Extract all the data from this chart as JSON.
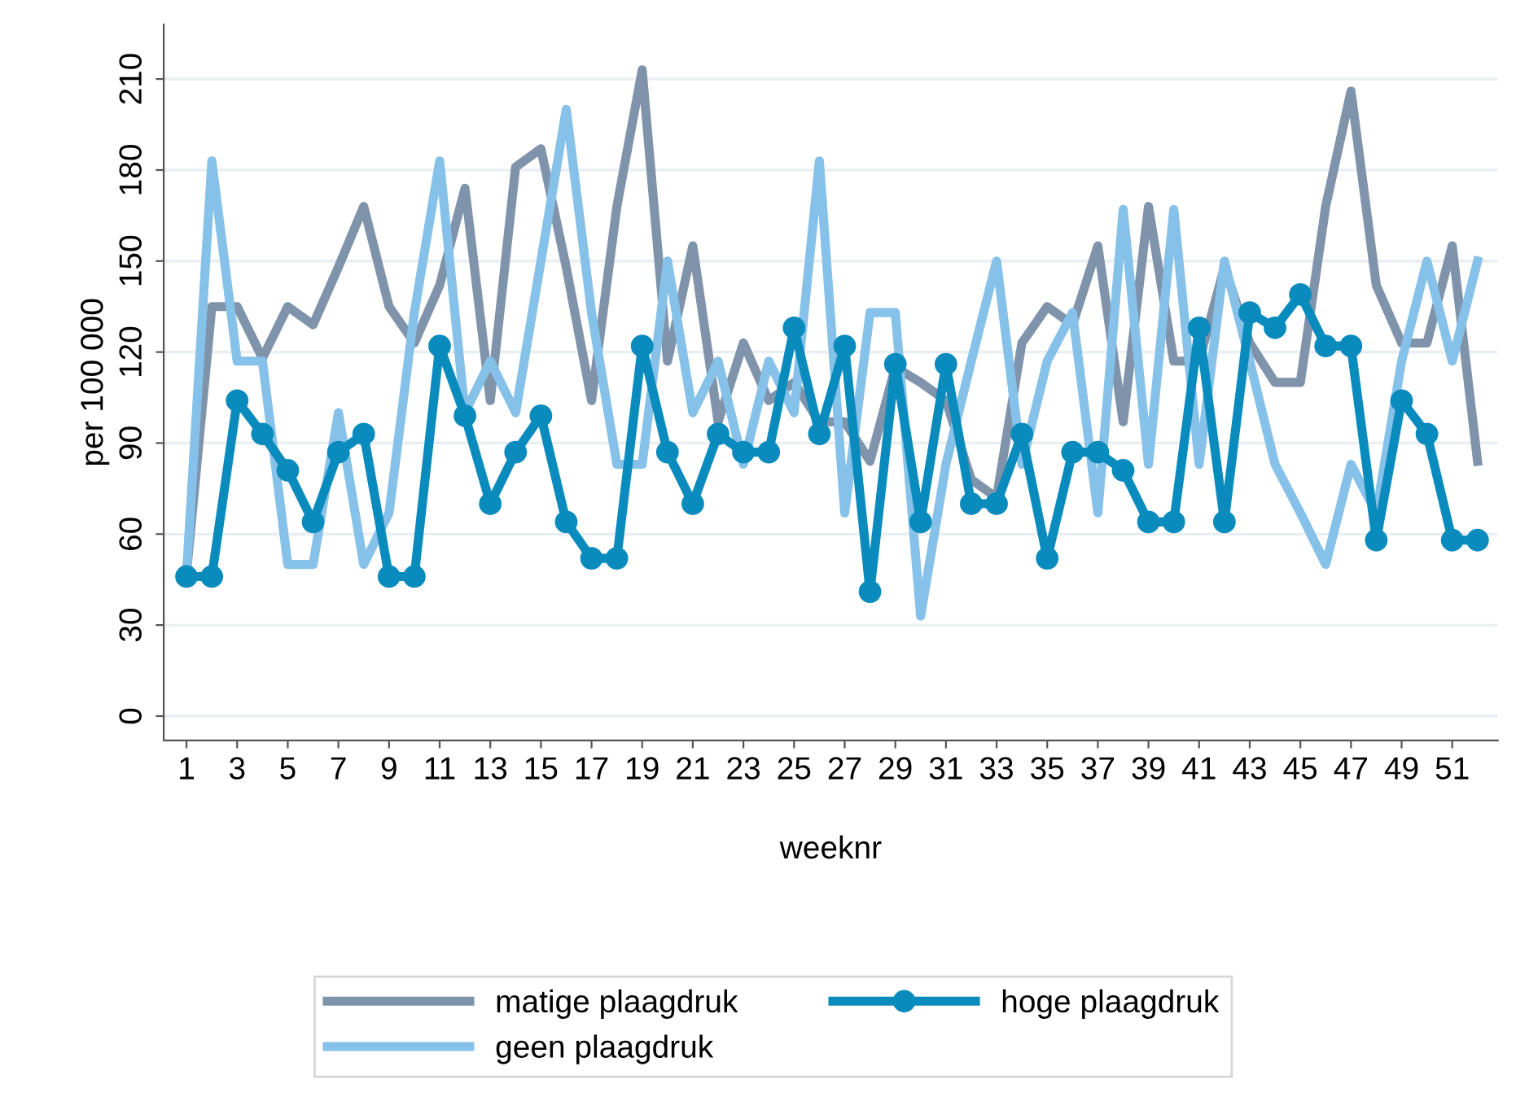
{
  "chart_data": {
    "type": "line",
    "xlabel": "weeknr",
    "ylabel": "per 100 000",
    "x": [
      1,
      2,
      3,
      4,
      5,
      6,
      7,
      8,
      9,
      10,
      11,
      12,
      13,
      14,
      15,
      16,
      17,
      18,
      19,
      20,
      21,
      22,
      23,
      24,
      25,
      26,
      27,
      28,
      29,
      30,
      31,
      32,
      33,
      34,
      35,
      36,
      37,
      38,
      39,
      40,
      41,
      42,
      43,
      44,
      45,
      46,
      47,
      48,
      49,
      50,
      51,
      52
    ],
    "xlim": [
      0.1,
      52.8
    ],
    "xticks": [
      1,
      3,
      5,
      7,
      9,
      11,
      13,
      15,
      17,
      19,
      21,
      23,
      25,
      27,
      29,
      31,
      33,
      35,
      37,
      39,
      41,
      43,
      45,
      47,
      49,
      51
    ],
    "ylim": [
      -8,
      228
    ],
    "yticks": [
      0,
      30,
      60,
      90,
      120,
      150,
      180,
      210
    ],
    "grid": "y",
    "legend": "bottom",
    "series": [
      {
        "name": "matige plaagdruk",
        "color": "#7f93ab",
        "marker": "none",
        "values": [
          47,
          135,
          135,
          118,
          135,
          129,
          148,
          168,
          135,
          123,
          142,
          174,
          104,
          181,
          187,
          148,
          104,
          168,
          213,
          117,
          155,
          97,
          123,
          104,
          110,
          97,
          97,
          84,
          115,
          110,
          104,
          78,
          72,
          123,
          135,
          129,
          155,
          97,
          168,
          117,
          117,
          148,
          123,
          110,
          110,
          168,
          206,
          142,
          123,
          123,
          155,
          84
        ]
      },
      {
        "name": "hoge plaagdruk",
        "color": "#0a8bbd",
        "marker": "circle",
        "values": [
          46,
          46,
          104,
          93,
          81,
          64,
          87,
          93,
          46,
          46,
          122,
          99,
          70,
          87,
          99,
          64,
          52,
          52,
          122,
          87,
          70,
          93,
          87,
          87,
          128,
          93,
          122,
          41,
          116,
          64,
          116,
          70,
          70,
          93,
          52,
          87,
          87,
          81,
          64,
          64,
          128,
          64,
          133,
          128,
          139,
          122,
          122,
          58,
          104,
          93,
          58,
          58
        ]
      },
      {
        "name": "geen plaagdruk",
        "color": "#85c1e9",
        "marker": "none",
        "values": [
          47,
          183,
          117,
          117,
          50,
          50,
          100,
          50,
          67,
          133,
          183,
          100,
          117,
          100,
          150,
          200,
          133,
          83,
          83,
          150,
          100,
          117,
          83,
          117,
          100,
          183,
          67,
          133,
          133,
          33,
          83,
          117,
          150,
          83,
          117,
          133,
          67,
          167,
          83,
          167,
          83,
          150,
          117,
          83,
          67,
          50,
          83,
          67,
          117,
          150,
          117,
          150
        ]
      }
    ]
  }
}
